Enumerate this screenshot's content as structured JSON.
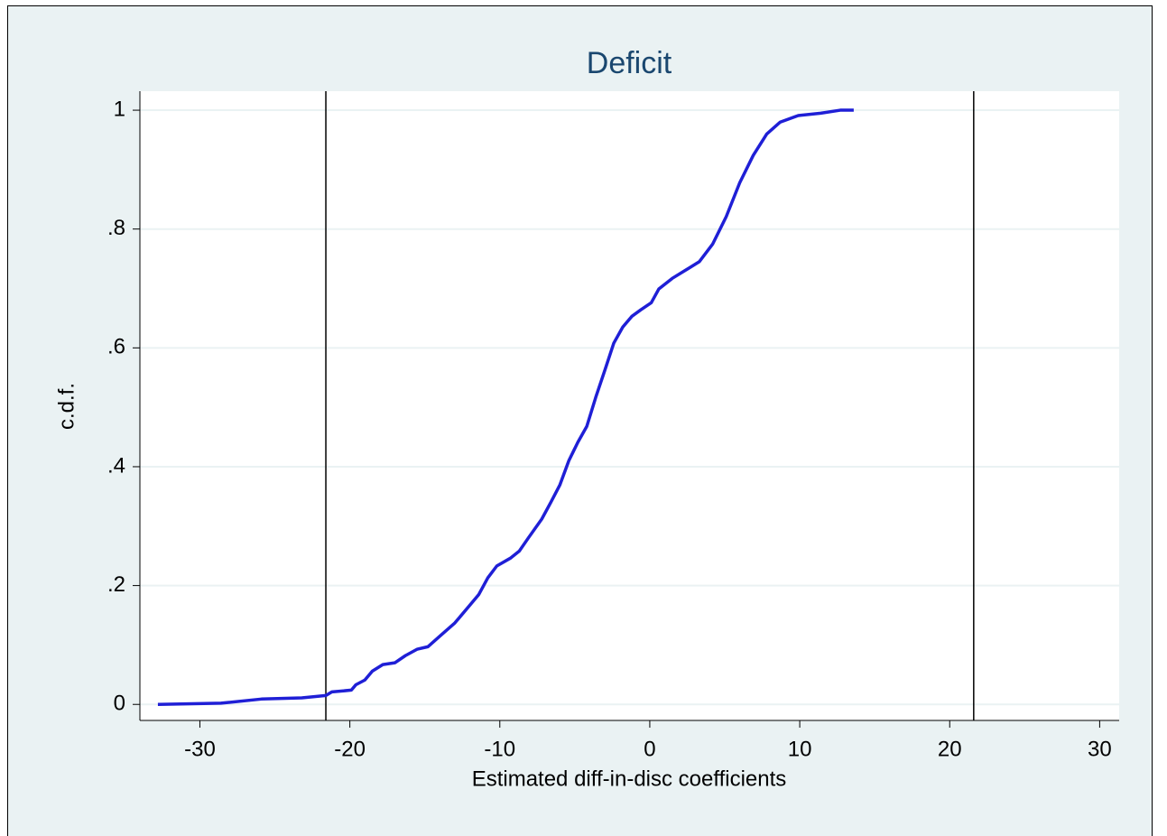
{
  "chart_data": {
    "type": "line",
    "title": "Deficit",
    "xlabel": "Estimated diff-in-disc coefficients",
    "ylabel": "c.d.f.",
    "x": [
      -32.8,
      -28.6,
      -25.9,
      -23.2,
      -21.6,
      -21.2,
      -19.9,
      -19.6,
      -19.0,
      -18.5,
      -17.8,
      -17.0,
      -16.3,
      -15.5,
      -14.8,
      -13.9,
      -13.0,
      -12.0,
      -11.4,
      -10.8,
      -10.2,
      -9.3,
      -8.7,
      -8.1,
      -7.2,
      -6.6,
      -6.0,
      -5.4,
      -4.8,
      -4.2,
      -3.6,
      -3.0,
      -2.4,
      -1.8,
      -1.2,
      -0.6,
      0.1,
      0.6,
      1.5,
      2.4,
      3.3,
      4.2,
      5.1,
      6.0,
      6.9,
      7.8,
      8.7,
      9.9,
      11.4,
      12.7,
      13.6
    ],
    "values": [
      0,
      0.002,
      0.009,
      0.011,
      0.015,
      0.021,
      0.024,
      0.033,
      0.041,
      0.056,
      0.067,
      0.07,
      0.082,
      0.093,
      0.097,
      0.117,
      0.137,
      0.167,
      0.185,
      0.213,
      0.233,
      0.246,
      0.258,
      0.28,
      0.312,
      0.34,
      0.369,
      0.41,
      0.441,
      0.468,
      0.517,
      0.562,
      0.608,
      0.635,
      0.653,
      0.664,
      0.676,
      0.699,
      0.717,
      0.731,
      0.745,
      0.775,
      0.821,
      0.878,
      0.924,
      0.96,
      0.98,
      0.991,
      0.995,
      1,
      1
    ],
    "color": "#1f1fd6",
    "xlines": [
      -21.6,
      21.6
    ],
    "xlim": [
      -34,
      31.3
    ],
    "xticks": [
      -30,
      -20,
      -10,
      0,
      10,
      20,
      30
    ],
    "ylim": [
      -0.027,
      1.032
    ],
    "yticks": [
      0,
      {
        "value": 0.2,
        "label": ".2"
      },
      {
        "value": 0.4,
        "label": ".4"
      },
      {
        "value": 0.6,
        "label": ".6"
      },
      {
        "value": 0.8,
        "label": ".8"
      },
      1
    ],
    "grid": true
  }
}
